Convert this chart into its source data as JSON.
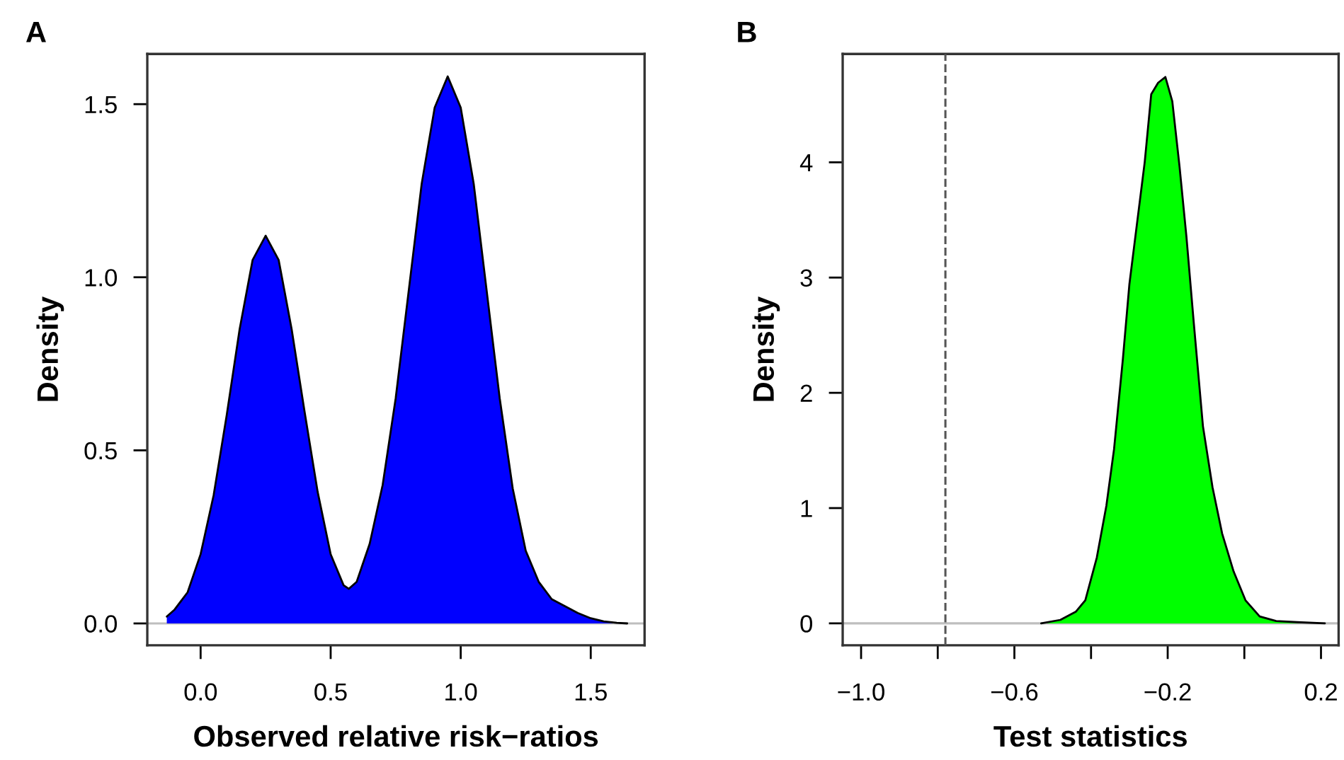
{
  "chart_data": [
    {
      "type": "area",
      "title": "A",
      "xlabel": "Observed relative risk−ratios",
      "ylabel": "Density",
      "xlim": [
        -0.205,
        1.707
      ],
      "ylim": [
        -0.063,
        1.645
      ],
      "xticks": [
        {
          "value": 0,
          "label": "0.0"
        },
        0.5,
        {
          "value": 1,
          "label": "1.0"
        },
        1.5
      ],
      "yticks": [
        {
          "value": 0,
          "label": "0.0"
        },
        0.5,
        {
          "value": 1,
          "label": "1.0"
        },
        1.5
      ],
      "grid": false,
      "ref_lines": [
        {
          "axis": "y",
          "value": 0,
          "color": "#bebebe",
          "line_style": "solid"
        }
      ],
      "series": [
        {
          "color": "#0000ff",
          "x": [
            -0.13,
            -0.1,
            -0.05,
            0,
            0.05,
            0.1,
            0.15,
            0.2,
            0.25,
            0.3,
            0.35,
            0.4,
            0.45,
            0.5,
            0.55,
            0.57,
            0.6,
            0.65,
            0.7,
            0.75,
            0.8,
            0.85,
            0.9,
            0.95,
            1.0,
            1.05,
            1.1,
            1.15,
            1.2,
            1.25,
            1.3,
            1.35,
            1.4,
            1.45,
            1.5,
            1.55,
            1.6,
            1.64
          ],
          "values": [
            0.02,
            0.04,
            0.09,
            0.2,
            0.37,
            0.6,
            0.85,
            1.05,
            1.12,
            1.05,
            0.85,
            0.61,
            0.38,
            0.2,
            0.11,
            0.1,
            0.12,
            0.23,
            0.4,
            0.65,
            0.96,
            1.27,
            1.49,
            1.58,
            1.49,
            1.27,
            0.96,
            0.65,
            0.39,
            0.21,
            0.12,
            0.07,
            0.05,
            0.03,
            0.015,
            0.006,
            0.002,
            0
          ]
        }
      ]
    },
    {
      "type": "area",
      "title": "B",
      "xlabel": "Test statistics",
      "ylabel": "Density",
      "xlim": [
        -1.048,
        0.246
      ],
      "ylim": [
        -0.19,
        4.94
      ],
      "xticks": [
        {
          "value": -1,
          "label": "−1.0"
        },
        {
          "value": -0.8,
          "label": null
        },
        {
          "value": -0.6,
          "label": "−0.6"
        },
        {
          "value": -0.4,
          "label": null
        },
        {
          "value": -0.2,
          "label": "−0.2"
        },
        {
          "value": 0,
          "label": null
        },
        0.2
      ],
      "yticks": [
        0,
        1,
        2,
        3,
        4
      ],
      "grid": false,
      "ref_lines": [
        {
          "axis": "y",
          "value": 0,
          "color": "#bebebe",
          "line_style": "solid"
        },
        {
          "axis": "x",
          "value": -0.78,
          "color": "#555555",
          "line_style": "dashed"
        }
      ],
      "series": [
        {
          "color": "#00ff00",
          "x": [
            -0.53,
            -0.48,
            -0.44,
            -0.415,
            -0.385,
            -0.36,
            -0.34,
            -0.317,
            -0.3,
            -0.28,
            -0.26,
            -0.243,
            -0.225,
            -0.206,
            -0.188,
            -0.169,
            -0.151,
            -0.132,
            -0.108,
            -0.083,
            -0.058,
            -0.028,
            0.003,
            0.04,
            0.083,
            0.138,
            0.21
          ],
          "values": [
            0,
            0.03,
            0.1,
            0.2,
            0.57,
            1.02,
            1.51,
            2.29,
            2.94,
            3.47,
            4.0,
            4.59,
            4.69,
            4.74,
            4.53,
            3.96,
            3.35,
            2.61,
            1.71,
            1.18,
            0.78,
            0.45,
            0.2,
            0.06,
            0.02,
            0.01,
            0
          ]
        }
      ]
    }
  ]
}
